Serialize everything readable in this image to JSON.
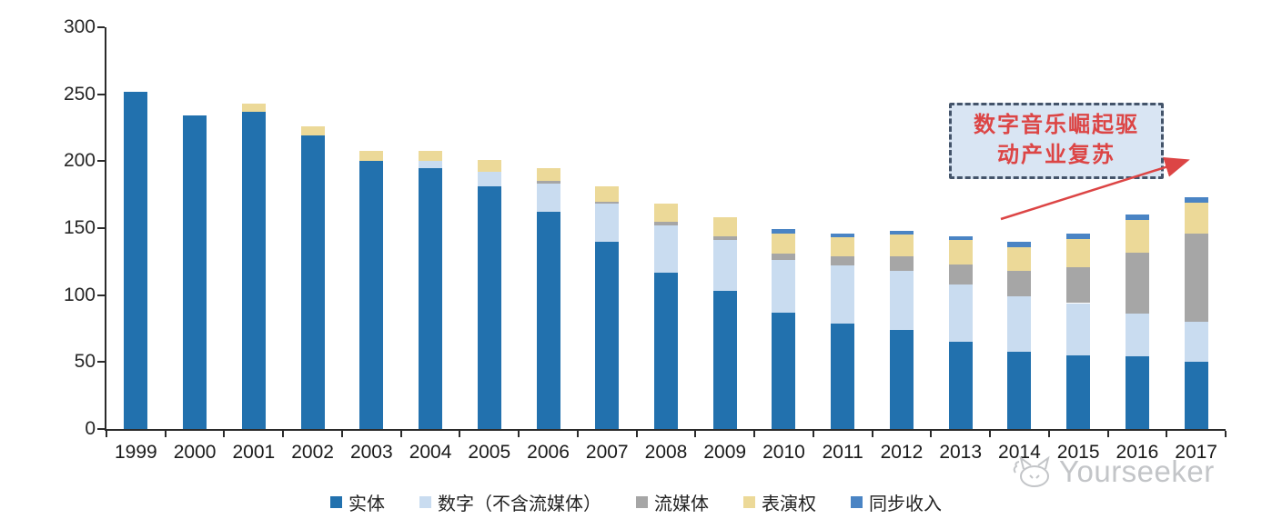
{
  "chart_data": {
    "type": "bar",
    "stacked": true,
    "title": "",
    "xlabel": "",
    "ylabel": "",
    "grid": false,
    "legend_position": "bottom",
    "ylim": [
      0,
      300
    ],
    "yticks": [
      0,
      50,
      100,
      150,
      200,
      250,
      300
    ],
    "categories": [
      "1999",
      "2000",
      "2001",
      "2002",
      "2003",
      "2004",
      "2005",
      "2006",
      "2007",
      "2008",
      "2009",
      "2010",
      "2011",
      "2012",
      "2013",
      "2014",
      "2015",
      "2016",
      "2017"
    ],
    "series": [
      {
        "name": "实体",
        "color": "#2271ae",
        "values": [
          252,
          234,
          237,
          219,
          200,
          195,
          181,
          162,
          140,
          117,
          103,
          87,
          79,
          74,
          65,
          58,
          55,
          54,
          50
        ]
      },
      {
        "name": "数字（不含流媒体）",
        "color": "#c9dcf0",
        "values": [
          0,
          0,
          0,
          0,
          0,
          5,
          11,
          21,
          28,
          35,
          38,
          39,
          43,
          44,
          43,
          41,
          39,
          32,
          30
        ]
      },
      {
        "name": "流媒体",
        "color": "#a6a6a6",
        "values": [
          0,
          0,
          0,
          0,
          0,
          0,
          0,
          2,
          2,
          3,
          3,
          5,
          7,
          11,
          15,
          19,
          27,
          46,
          66
        ]
      },
      {
        "name": "表演权",
        "color": "#ecd998",
        "values": [
          0,
          0,
          6,
          7,
          8,
          8,
          9,
          10,
          11,
          13,
          14,
          15,
          14,
          16,
          18,
          18,
          21,
          24,
          23
        ]
      },
      {
        "name": "同步收入",
        "color": "#4a84c4",
        "values": [
          0,
          0,
          0,
          0,
          0,
          0,
          0,
          0,
          0,
          0,
          0,
          3,
          3,
          3,
          3,
          4,
          4,
          4,
          4
        ]
      }
    ]
  },
  "annotation": {
    "line1": "数字音乐崛起驱",
    "line2": "动产业复苏"
  },
  "watermark": {
    "brand": "Yourseeker"
  },
  "colors": {
    "axis": "#2b2b2b",
    "annotation_border": "#44546a",
    "annotation_bg": "#d9e5f3",
    "annotation_text": "#dc4545",
    "arrow": "#dc4545",
    "watermark": "#c3c5c8"
  }
}
